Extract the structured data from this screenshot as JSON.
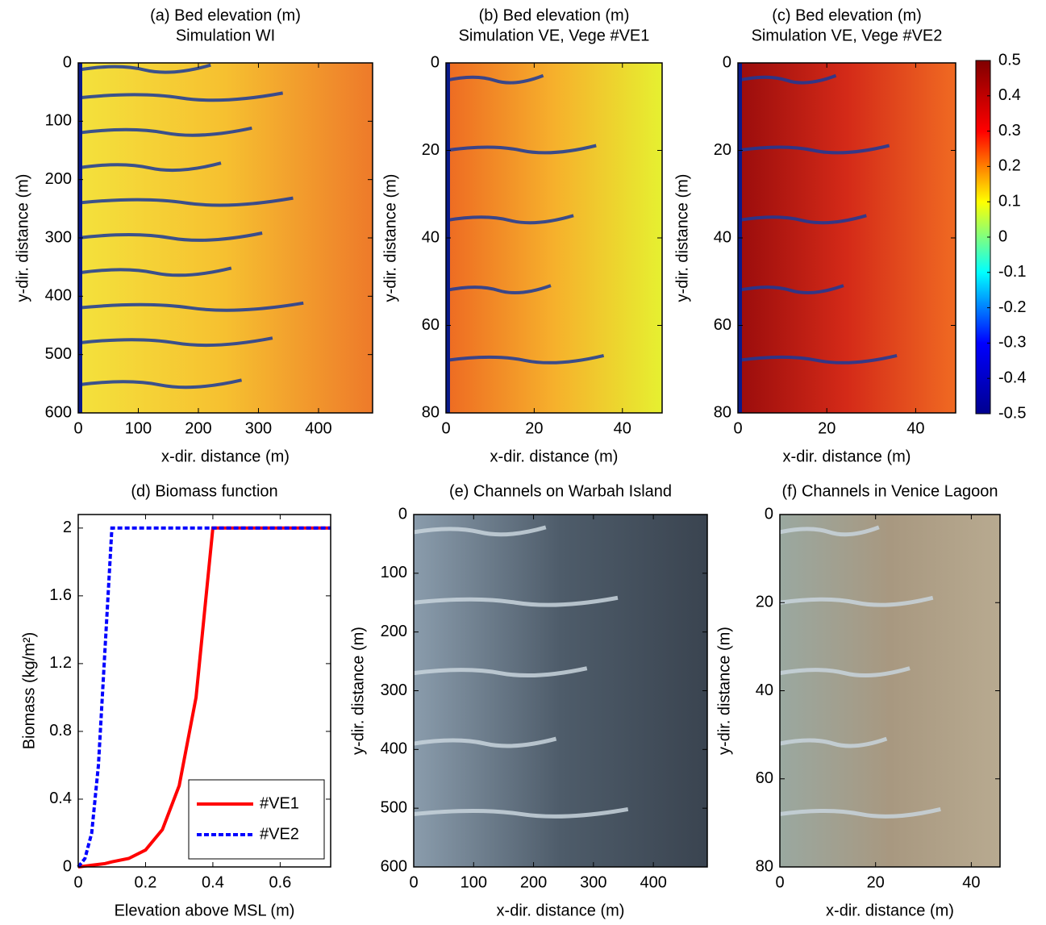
{
  "chart_data": [
    {
      "type": "heatmap",
      "title": "(a) Bed elevation (m)",
      "subtitle": "Simulation WI",
      "xlabel": "x-dir. distance (m)",
      "ylabel": "y-dir. distance (m)",
      "xlim": [
        0,
        490
      ],
      "xticks": [
        0,
        100,
        200,
        300,
        400
      ],
      "ylim": [
        0,
        600
      ],
      "yticks": [
        0,
        100,
        200,
        300,
        400,
        500,
        600
      ],
      "y_inverted": true,
      "colors": [
        "#f4e23c",
        "#f6c030",
        "#ee7a2a"
      ]
    },
    {
      "type": "heatmap",
      "title": "(b) Bed elevation (m)",
      "subtitle": "Simulation VE, Vege #VE1",
      "xlabel": "x-dir. distance (m)",
      "ylabel": "y-dir. distance (m)",
      "xlim": [
        0,
        49
      ],
      "xticks": [
        0,
        20,
        40
      ],
      "ylim": [
        0,
        80
      ],
      "yticks": [
        0,
        20,
        40,
        60,
        80
      ],
      "y_inverted": true,
      "colors": [
        "#ee6a22",
        "#f6b02c",
        "#e6f030"
      ]
    },
    {
      "type": "heatmap",
      "title": "(c) Bed elevation (m)",
      "subtitle": "Simulation VE, Vege #VE2",
      "xlabel": "x-dir. distance (m)",
      "ylabel": "y-dir. distance (m)",
      "xlim": [
        0,
        49
      ],
      "xticks": [
        0,
        20,
        40
      ],
      "ylim": [
        0,
        80
      ],
      "yticks": [
        0,
        20,
        40,
        60,
        80
      ],
      "y_inverted": true,
      "colors": [
        "#9a0c0c",
        "#d42a18",
        "#f06a22"
      ],
      "colorbar": {
        "lim": [
          -0.5,
          0.5
        ],
        "ticks": [
          0.5,
          0.4,
          0.3,
          0.2,
          0.1,
          0,
          -0.1,
          -0.2,
          -0.3,
          -0.4,
          -0.5
        ],
        "colors": [
          "#00008f",
          "#0000ff",
          "#00ffff",
          "#ffff00",
          "#ff0000",
          "#800000"
        ]
      }
    },
    {
      "type": "line",
      "title": "(d) Biomass function",
      "xlabel": "Elevation above MSL (m)",
      "ylabel": "Biomass (kg/m²)",
      "xlim": [
        0,
        0.75
      ],
      "xticks": [
        0,
        0.2,
        0.4,
        0.6
      ],
      "ylim": [
        0,
        2.08
      ],
      "yticks": [
        0,
        0.4,
        0.8,
        1.2,
        1.6,
        2
      ],
      "legend": "lower right",
      "x": [
        0,
        0.02,
        0.04,
        0.06,
        0.08,
        0.1,
        0.15,
        0.2,
        0.25,
        0.3,
        0.35,
        0.4,
        0.5,
        0.6,
        0.75
      ],
      "series": [
        {
          "name": "#VE1",
          "color": "#ff0000",
          "dash": "solid",
          "values": [
            0,
            0.005,
            0.01,
            0.015,
            0.02,
            0.03,
            0.05,
            0.1,
            0.22,
            0.48,
            1.0,
            2,
            2,
            2,
            2
          ]
        },
        {
          "name": "#VE2",
          "color": "#0000ff",
          "dash": "dashed",
          "values": [
            0,
            0.05,
            0.2,
            0.6,
            1.3,
            2,
            2,
            2,
            2,
            2,
            2,
            2,
            2,
            2,
            2
          ]
        }
      ]
    },
    {
      "type": "image",
      "title": "(e) Channels on Warbah Island",
      "xlabel": "x-dir. distance (m)",
      "ylabel": "y-dir. distance (m)",
      "xlim": [
        0,
        490
      ],
      "xticks": [
        0,
        100,
        200,
        300,
        400
      ],
      "ylim": [
        0,
        600
      ],
      "yticks": [
        0,
        100,
        200,
        300,
        400,
        500,
        600
      ],
      "y_inverted": true,
      "colors": [
        "#8a9cac",
        "#4e5c6a",
        "#3a4450"
      ]
    },
    {
      "type": "image",
      "title": "(f) Channels in Venice Lagoon",
      "xlabel": "x-dir. distance (m)",
      "ylabel": "y-dir. distance (m)",
      "xlim": [
        0,
        46
      ],
      "xticks": [
        0,
        20,
        40
      ],
      "ylim": [
        0,
        80
      ],
      "yticks": [
        0,
        20,
        40,
        60,
        80
      ],
      "y_inverted": true,
      "colors": [
        "#9aa8a0",
        "#a89880",
        "#b8aa90"
      ]
    }
  ]
}
